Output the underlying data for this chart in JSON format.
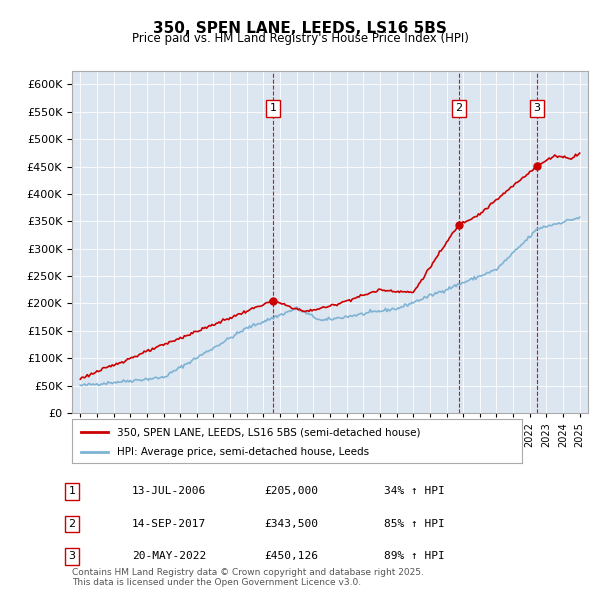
{
  "title": "350, SPEN LANE, LEEDS, LS16 5BS",
  "subtitle": "Price paid vs. HM Land Registry's House Price Index (HPI)",
  "bg_color": "#dce6f1",
  "plot_bg_color": "#dce6f1",
  "red_line_color": "#cc0000",
  "blue_line_color": "#7fb3d3",
  "sale_dates": [
    "2006-07-13",
    "2017-09-14",
    "2022-05-20"
  ],
  "sale_prices": [
    205000,
    343500,
    450126
  ],
  "sale_labels": [
    "1",
    "2",
    "3"
  ],
  "legend_red": "350, SPEN LANE, LEEDS, LS16 5BS (semi-detached house)",
  "legend_blue": "HPI: Average price, semi-detached house, Leeds",
  "table_rows": [
    [
      "1",
      "13-JUL-2006",
      "£205,000",
      "34% ↑ HPI"
    ],
    [
      "2",
      "14-SEP-2017",
      "£343,500",
      "85% ↑ HPI"
    ],
    [
      "3",
      "20-MAY-2022",
      "£450,126",
      "89% ↑ HPI"
    ]
  ],
  "footnote": "Contains HM Land Registry data © Crown copyright and database right 2025.\nThis data is licensed under the Open Government Licence v3.0.",
  "ylim": [
    0,
    625000
  ],
  "yticks": [
    0,
    50000,
    100000,
    150000,
    200000,
    250000,
    300000,
    350000,
    400000,
    450000,
    500000,
    550000,
    600000
  ],
  "xlim_start": 1994.5,
  "xlim_end": 2025.5
}
